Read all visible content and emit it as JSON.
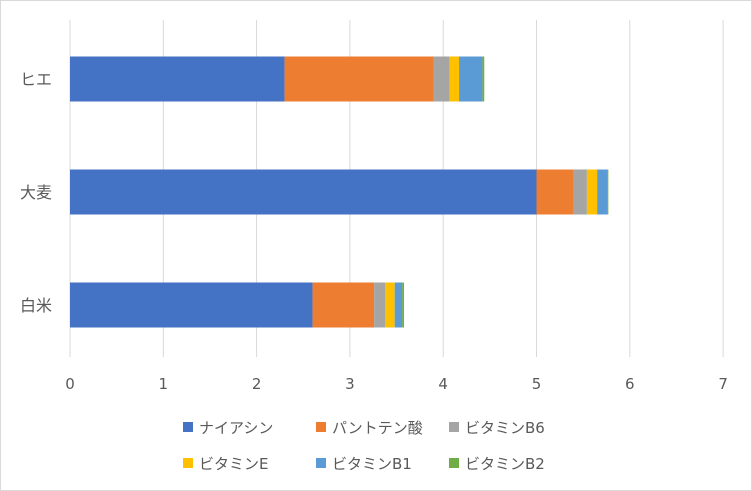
{
  "chart_data": {
    "type": "bar",
    "orientation": "horizontal",
    "stacked": true,
    "categories": [
      "ヒエ",
      "大麦",
      "白米"
    ],
    "series": [
      {
        "name": "ナイアシン",
        "color": "#4472C4",
        "values": [
          2.3,
          5.0,
          2.6
        ]
      },
      {
        "name": "パントテン酸",
        "color": "#ED7D31",
        "values": [
          1.6,
          0.4,
          0.66
        ]
      },
      {
        "name": "ビタミンB6",
        "color": "#A5A5A5",
        "values": [
          0.17,
          0.14,
          0.12
        ]
      },
      {
        "name": "ビタミンE",
        "color": "#FFC000",
        "values": [
          0.1,
          0.11,
          0.1
        ]
      },
      {
        "name": "ビタミンB1",
        "color": "#5B9BD5",
        "values": [
          0.25,
          0.11,
          0.08
        ]
      },
      {
        "name": "ビタミンB2",
        "color": "#70AD47",
        "values": [
          0.02,
          0.01,
          0.02
        ]
      }
    ],
    "x_ticks": [
      "0",
      "1",
      "2",
      "3",
      "4",
      "5",
      "6",
      "7"
    ],
    "xlim": [
      0,
      7
    ],
    "title": "",
    "xlabel": "",
    "ylabel": "",
    "grid": true,
    "legend_position": "bottom"
  }
}
